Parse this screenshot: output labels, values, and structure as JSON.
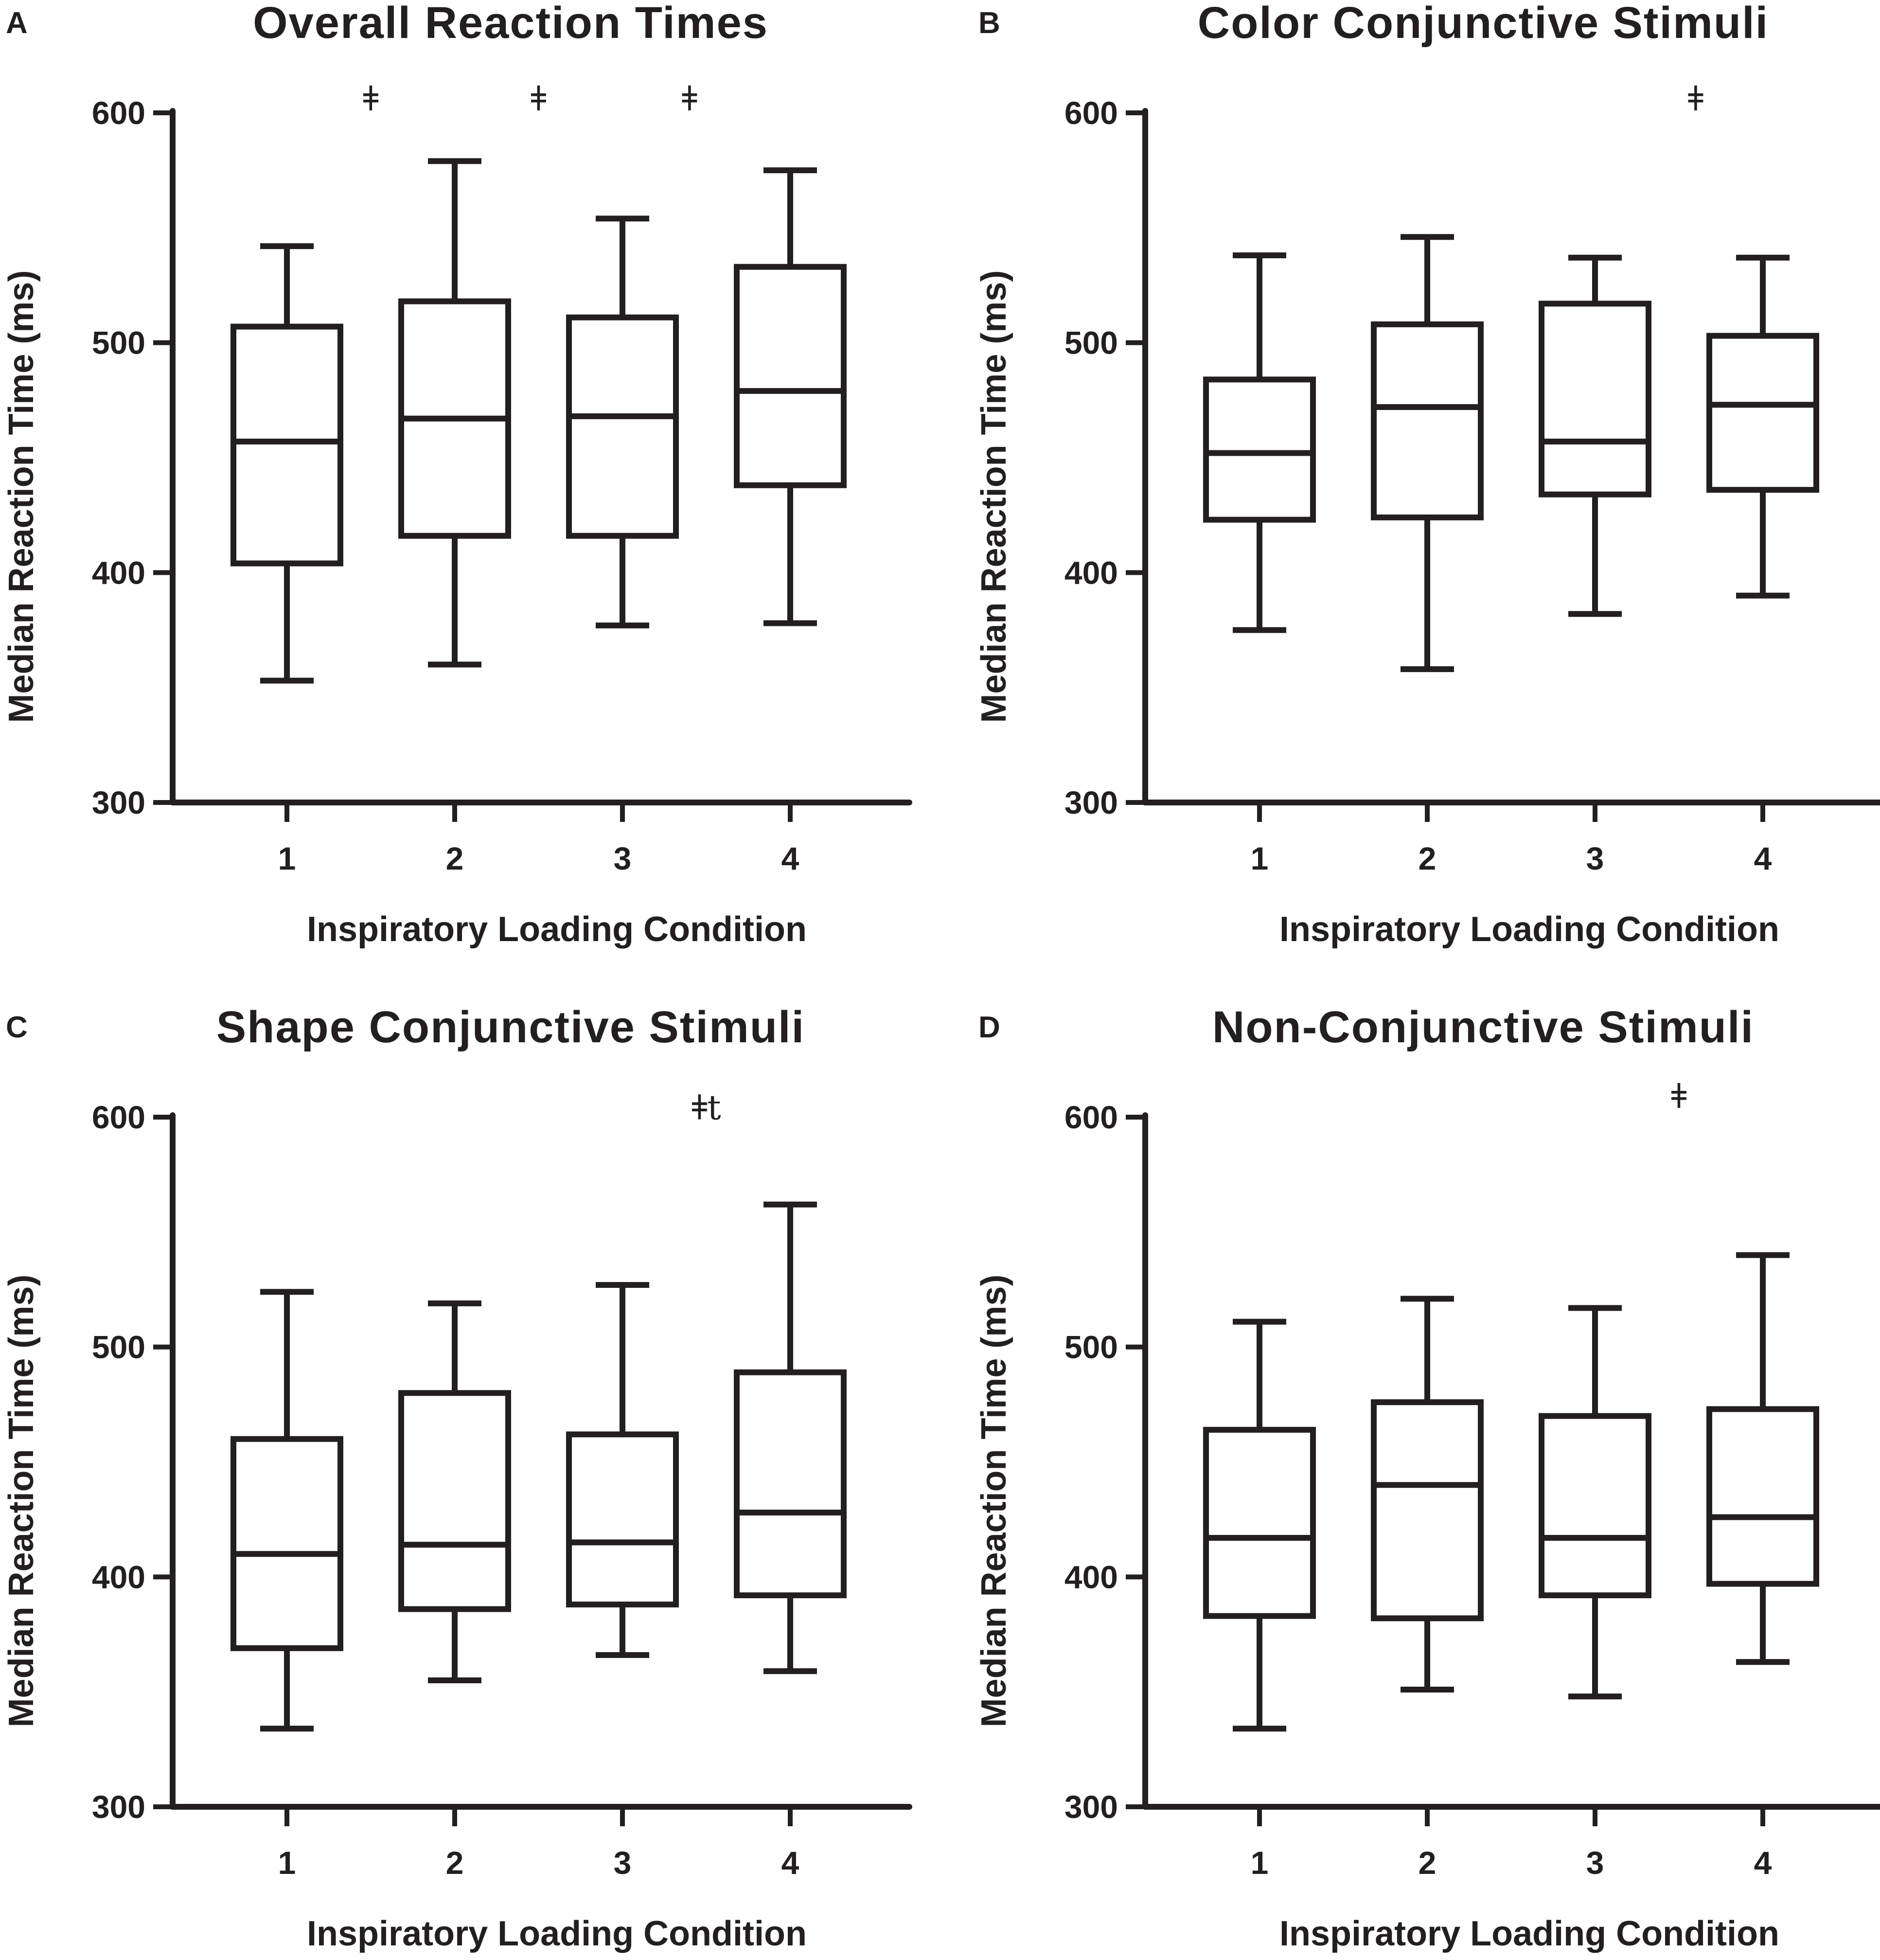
{
  "colors": {
    "ink": "#231f20",
    "background": "#ffffff"
  },
  "chart_data": [
    {
      "type": "box",
      "panel_label": "A",
      "title": "Overall Reaction Times",
      "xlabel": "Inspiratory Loading Condition",
      "ylabel": "Median Reaction Time (ms)",
      "ylim": [
        300,
        600
      ],
      "yticks": [
        "300",
        "400",
        "500",
        "600"
      ],
      "categories": [
        "1",
        "2",
        "3",
        "4"
      ],
      "boxes": [
        {
          "min": 353,
          "q1": 404,
          "median": 457,
          "q3": 507,
          "max": 542
        },
        {
          "min": 360,
          "q1": 416,
          "median": 467,
          "q3": 518,
          "max": 579
        },
        {
          "min": 377,
          "q1": 416,
          "median": 468,
          "q3": 511,
          "max": 554
        },
        {
          "min": 378,
          "q1": 438,
          "median": 479,
          "q3": 533,
          "max": 575
        }
      ],
      "annotations": [
        {
          "text": "ǂ",
          "x": 1.5,
          "y": 604
        },
        {
          "text": "ǂ",
          "x": 2.5,
          "y": 604
        },
        {
          "text": "ǂ",
          "x": 3.4,
          "y": 604
        }
      ]
    },
    {
      "type": "box",
      "panel_label": "B",
      "title": "Color Conjunctive Stimuli",
      "xlabel": "Inspiratory Loading Condition",
      "ylabel": "Median Reaction Time (ms)",
      "ylim": [
        300,
        600
      ],
      "yticks": [
        "300",
        "400",
        "500",
        "600"
      ],
      "categories": [
        "1",
        "2",
        "3",
        "4"
      ],
      "boxes": [
        {
          "min": 375,
          "q1": 423,
          "median": 452,
          "q3": 484,
          "max": 538
        },
        {
          "min": 358,
          "q1": 424,
          "median": 472,
          "q3": 508,
          "max": 546
        },
        {
          "min": 382,
          "q1": 434,
          "median": 457,
          "q3": 517,
          "max": 537
        },
        {
          "min": 390,
          "q1": 436,
          "median": 473,
          "q3": 503,
          "max": 537
        }
      ],
      "annotations": [
        {
          "text": "ǂ",
          "x": 3.6,
          "y": 604
        }
      ]
    },
    {
      "type": "box",
      "panel_label": "C",
      "title": "Shape Conjunctive Stimuli",
      "xlabel": "Inspiratory Loading Condition",
      "ylabel": "Median Reaction Time (ms)",
      "ylim": [
        300,
        600
      ],
      "yticks": [
        "300",
        "400",
        "500",
        "600"
      ],
      "categories": [
        "1",
        "2",
        "3",
        "4"
      ],
      "boxes": [
        {
          "min": 334,
          "q1": 369,
          "median": 410,
          "q3": 460,
          "max": 524
        },
        {
          "min": 355,
          "q1": 386,
          "median": 414,
          "q3": 480,
          "max": 519
        },
        {
          "min": 366,
          "q1": 388,
          "median": 415,
          "q3": 462,
          "max": 527
        },
        {
          "min": 359,
          "q1": 392,
          "median": 428,
          "q3": 489,
          "max": 562
        }
      ],
      "annotations": [
        {
          "text": "ǂt",
          "x": 3.5,
          "y": 602
        }
      ]
    },
    {
      "type": "box",
      "panel_label": "D",
      "title": "Non-Conjunctive Stimuli",
      "xlabel": "Inspiratory Loading Condition",
      "ylabel": "Median Reaction Time (ms)",
      "ylim": [
        300,
        600
      ],
      "yticks": [
        "300",
        "400",
        "500",
        "600"
      ],
      "categories": [
        "1",
        "2",
        "3",
        "4"
      ],
      "boxes": [
        {
          "min": 334,
          "q1": 383,
          "median": 417,
          "q3": 464,
          "max": 511
        },
        {
          "min": 351,
          "q1": 382,
          "median": 440,
          "q3": 476,
          "max": 521
        },
        {
          "min": 348,
          "q1": 392,
          "median": 417,
          "q3": 470,
          "max": 517
        },
        {
          "min": 363,
          "q1": 397,
          "median": 426,
          "q3": 473,
          "max": 540
        }
      ],
      "annotations": [
        {
          "text": "ǂ",
          "x": 3.5,
          "y": 607
        }
      ]
    }
  ]
}
